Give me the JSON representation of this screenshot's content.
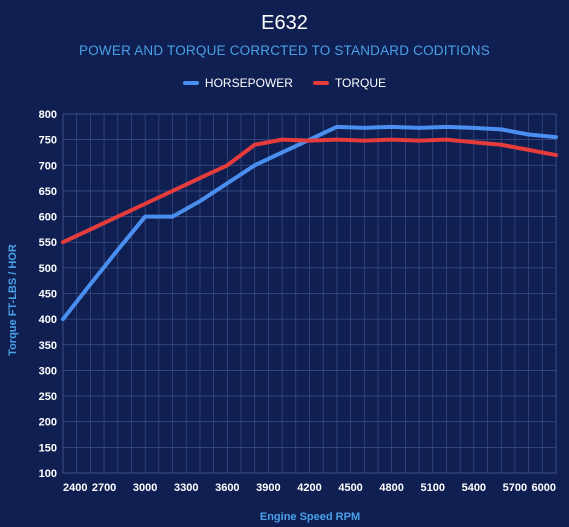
{
  "chart_data": {
    "type": "line",
    "title": "E632",
    "subtitle": "POWER AND TORQUE CORRCTED TO STANDARD CODITIONS",
    "xlabel": "Engine Speed RPM",
    "ylabel": "Torque FT-LBS / HOR",
    "xlim": [
      2400,
      6000
    ],
    "ylim": [
      100,
      800
    ],
    "x_ticks": [
      2400,
      2700,
      3000,
      3300,
      3600,
      3900,
      4200,
      4500,
      4800,
      5100,
      5400,
      5700,
      6000
    ],
    "y_ticks": [
      100,
      150,
      200,
      250,
      300,
      350,
      400,
      450,
      500,
      550,
      600,
      650,
      700,
      750,
      800
    ],
    "legend_position": "top-center",
    "grid": true,
    "series": [
      {
        "name": "HORSEPOWER",
        "color": "#4a8fef",
        "x": [
          2400,
          2600,
          2800,
          3000,
          3200,
          3400,
          3600,
          3800,
          4000,
          4200,
          4400,
          4600,
          4800,
          5000,
          5200,
          5400,
          5600,
          5800,
          6000
        ],
        "values": [
          400,
          468,
          535,
          600,
          600,
          630,
          665,
          700,
          725,
          750,
          775,
          773,
          775,
          773,
          775,
          773,
          770,
          760,
          755
        ]
      },
      {
        "name": "TORQUE",
        "color": "#e53b3b",
        "x": [
          2400,
          2600,
          2800,
          3000,
          3200,
          3400,
          3600,
          3800,
          4000,
          4200,
          4400,
          4600,
          4800,
          5000,
          5200,
          5400,
          5600,
          5800,
          6000
        ],
        "values": [
          550,
          575,
          600,
          625,
          650,
          675,
          700,
          740,
          750,
          748,
          750,
          748,
          750,
          748,
          750,
          745,
          740,
          730,
          720
        ]
      }
    ]
  },
  "colors": {
    "background": "#0f1f52",
    "grid": "#3a4f87",
    "title": "#ffffff",
    "subtitle": "#4aa0e6"
  }
}
